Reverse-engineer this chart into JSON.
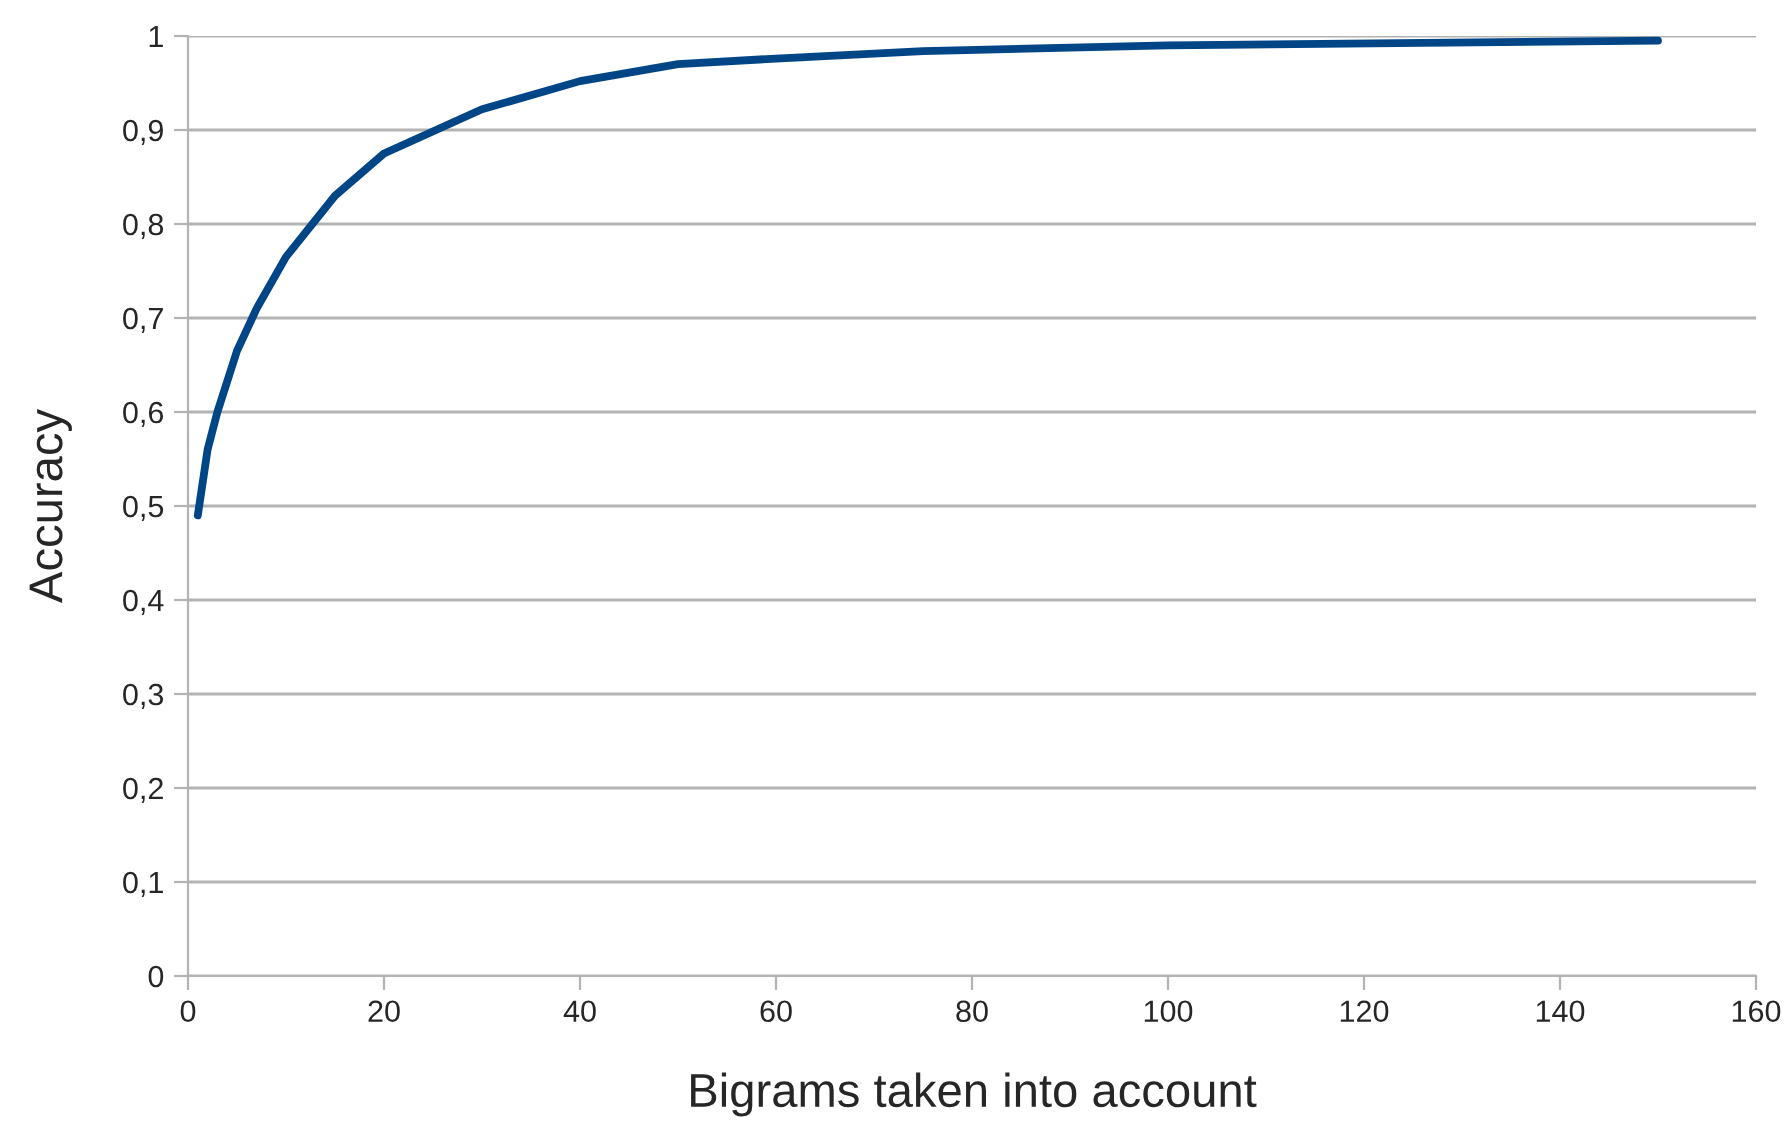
{
  "chart_data": {
    "type": "line",
    "xlabel": "Bigrams taken into account",
    "ylabel": "Accuracy",
    "x": [
      1,
      2,
      3,
      5,
      7,
      10,
      15,
      20,
      30,
      40,
      50,
      60,
      75,
      100,
      150
    ],
    "series": [
      {
        "color": "#004586",
        "values": [
          0.49,
          0.56,
          0.6,
          0.665,
          0.71,
          0.765,
          0.83,
          0.875,
          0.922,
          0.952,
          0.97,
          0.976,
          0.984,
          0.99,
          0.995
        ]
      }
    ],
    "xlim": [
      0,
      160
    ],
    "xticks": [
      0,
      20,
      40,
      60,
      80,
      100,
      120,
      140,
      160
    ],
    "ylim": [
      0,
      1
    ],
    "yticks": [
      0,
      {
        "value": 0.1,
        "label": "0,1"
      },
      {
        "value": 0.2,
        "label": "0,2"
      },
      {
        "value": 0.3,
        "label": "0,3"
      },
      {
        "value": 0.4,
        "label": "0,4"
      },
      {
        "value": 0.5,
        "label": "0,5"
      },
      {
        "value": 0.6,
        "label": "0,6"
      },
      {
        "value": 0.7,
        "label": "0,7"
      },
      {
        "value": 0.8,
        "label": "0,8"
      },
      {
        "value": 0.9,
        "label": "0,9"
      },
      1
    ],
    "grid": "y",
    "marker": "none",
    "line_style": "solid"
  }
}
